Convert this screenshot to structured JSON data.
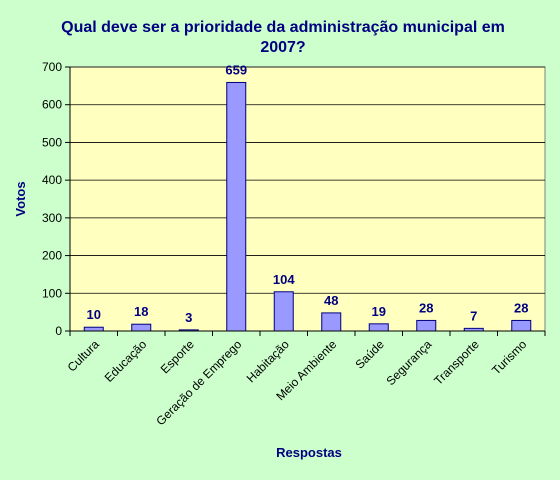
{
  "chart_data": {
    "type": "bar",
    "title_line1": "Qual deve ser a prioridade da administração municipal em",
    "title_line2": "2007?",
    "xlabel": "Respostas",
    "ylabel": "Votos",
    "ylim": [
      0,
      700
    ],
    "yticks": [
      "0",
      "100",
      "200",
      "300",
      "400",
      "500",
      "600",
      "700"
    ],
    "categories": [
      "Cultura",
      "Educação",
      "Esporte",
      "Geração de Emprego",
      "Habitação",
      "Meio Ambiente",
      "Saúde",
      "Segurança",
      "Transporte",
      "Turismo"
    ],
    "values": [
      10,
      18,
      3,
      659,
      104,
      48,
      19,
      28,
      7,
      28
    ],
    "grid": "horizontal",
    "legend": "none",
    "colors": {
      "background": "#CCFFCC",
      "plot_area": "#FFFFC0",
      "bar_fill": "#9999FF",
      "bar_stroke": "#000080",
      "title": "#000080"
    }
  }
}
